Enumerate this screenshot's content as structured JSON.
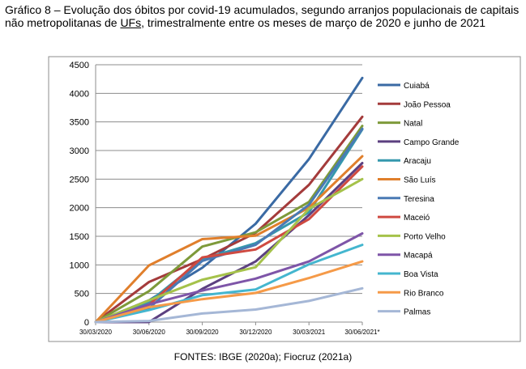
{
  "title": {
    "before": "Gráfico 8 – Evolução dos óbitos por covid-19 acumulados, segundo arranjos populacionais de capitais não metropolitanas de ",
    "underlined": "UFs",
    "after": ", trimestralmente entre os meses de março de 2020 e junho de 2021"
  },
  "source": "FONTES: IBGE (2020a); Fiocruz (2021a)",
  "chart_data": {
    "type": "line",
    "x": [
      "30/03/2020",
      "30/06/2020",
      "30/09/2020",
      "30/12/2020",
      "30/03/2021",
      "30/06/2021*"
    ],
    "ylim": [
      0,
      4500
    ],
    "yticks": [
      0,
      500,
      1000,
      1500,
      2000,
      2500,
      3000,
      3500,
      4000,
      4500
    ],
    "grid": "horizontal",
    "legend_position": "right",
    "series": [
      {
        "name": "Cuiabá",
        "color": "#3a6aa4",
        "values": [
          0,
          380,
          950,
          1720,
          2850,
          4270
        ]
      },
      {
        "name": "João Pessoa",
        "color": "#a43b3b",
        "values": [
          0,
          700,
          1100,
          1560,
          2400,
          3590
        ]
      },
      {
        "name": "Natal",
        "color": "#7e9a3a",
        "values": [
          0,
          540,
          1320,
          1570,
          2100,
          3430
        ]
      },
      {
        "name": "Campo Grande",
        "color": "#5c4080",
        "values": [
          0,
          0,
          580,
          1060,
          1870,
          2780
        ]
      },
      {
        "name": "Aracaju",
        "color": "#3598ad",
        "values": [
          0,
          350,
          1100,
          1380,
          1920,
          3370
        ]
      },
      {
        "name": "São Luís",
        "color": "#e07f2c",
        "values": [
          0,
          990,
          1450,
          1510,
          2000,
          2900
        ]
      },
      {
        "name": "Teresina",
        "color": "#4a7ab4",
        "values": [
          0,
          240,
          1070,
          1350,
          2050,
          3380
        ]
      },
      {
        "name": "Maceió",
        "color": "#cf4a41",
        "values": [
          0,
          300,
          1130,
          1270,
          1800,
          2720
        ]
      },
      {
        "name": "Porto Velho",
        "color": "#a5c24a",
        "values": [
          0,
          380,
          740,
          960,
          1980,
          2500
        ]
      },
      {
        "name": "Macapá",
        "color": "#7e55a8",
        "values": [
          0,
          310,
          550,
          760,
          1060,
          1550
        ]
      },
      {
        "name": "Boa Vista",
        "color": "#44b6cf",
        "values": [
          0,
          210,
          470,
          570,
          1010,
          1350
        ]
      },
      {
        "name": "Rio Branco",
        "color": "#f59a48",
        "values": [
          0,
          260,
          400,
          510,
          770,
          1060
        ]
      },
      {
        "name": "Palmas",
        "color": "#a5b7d6",
        "values": [
          0,
          20,
          150,
          220,
          370,
          590
        ]
      }
    ]
  }
}
